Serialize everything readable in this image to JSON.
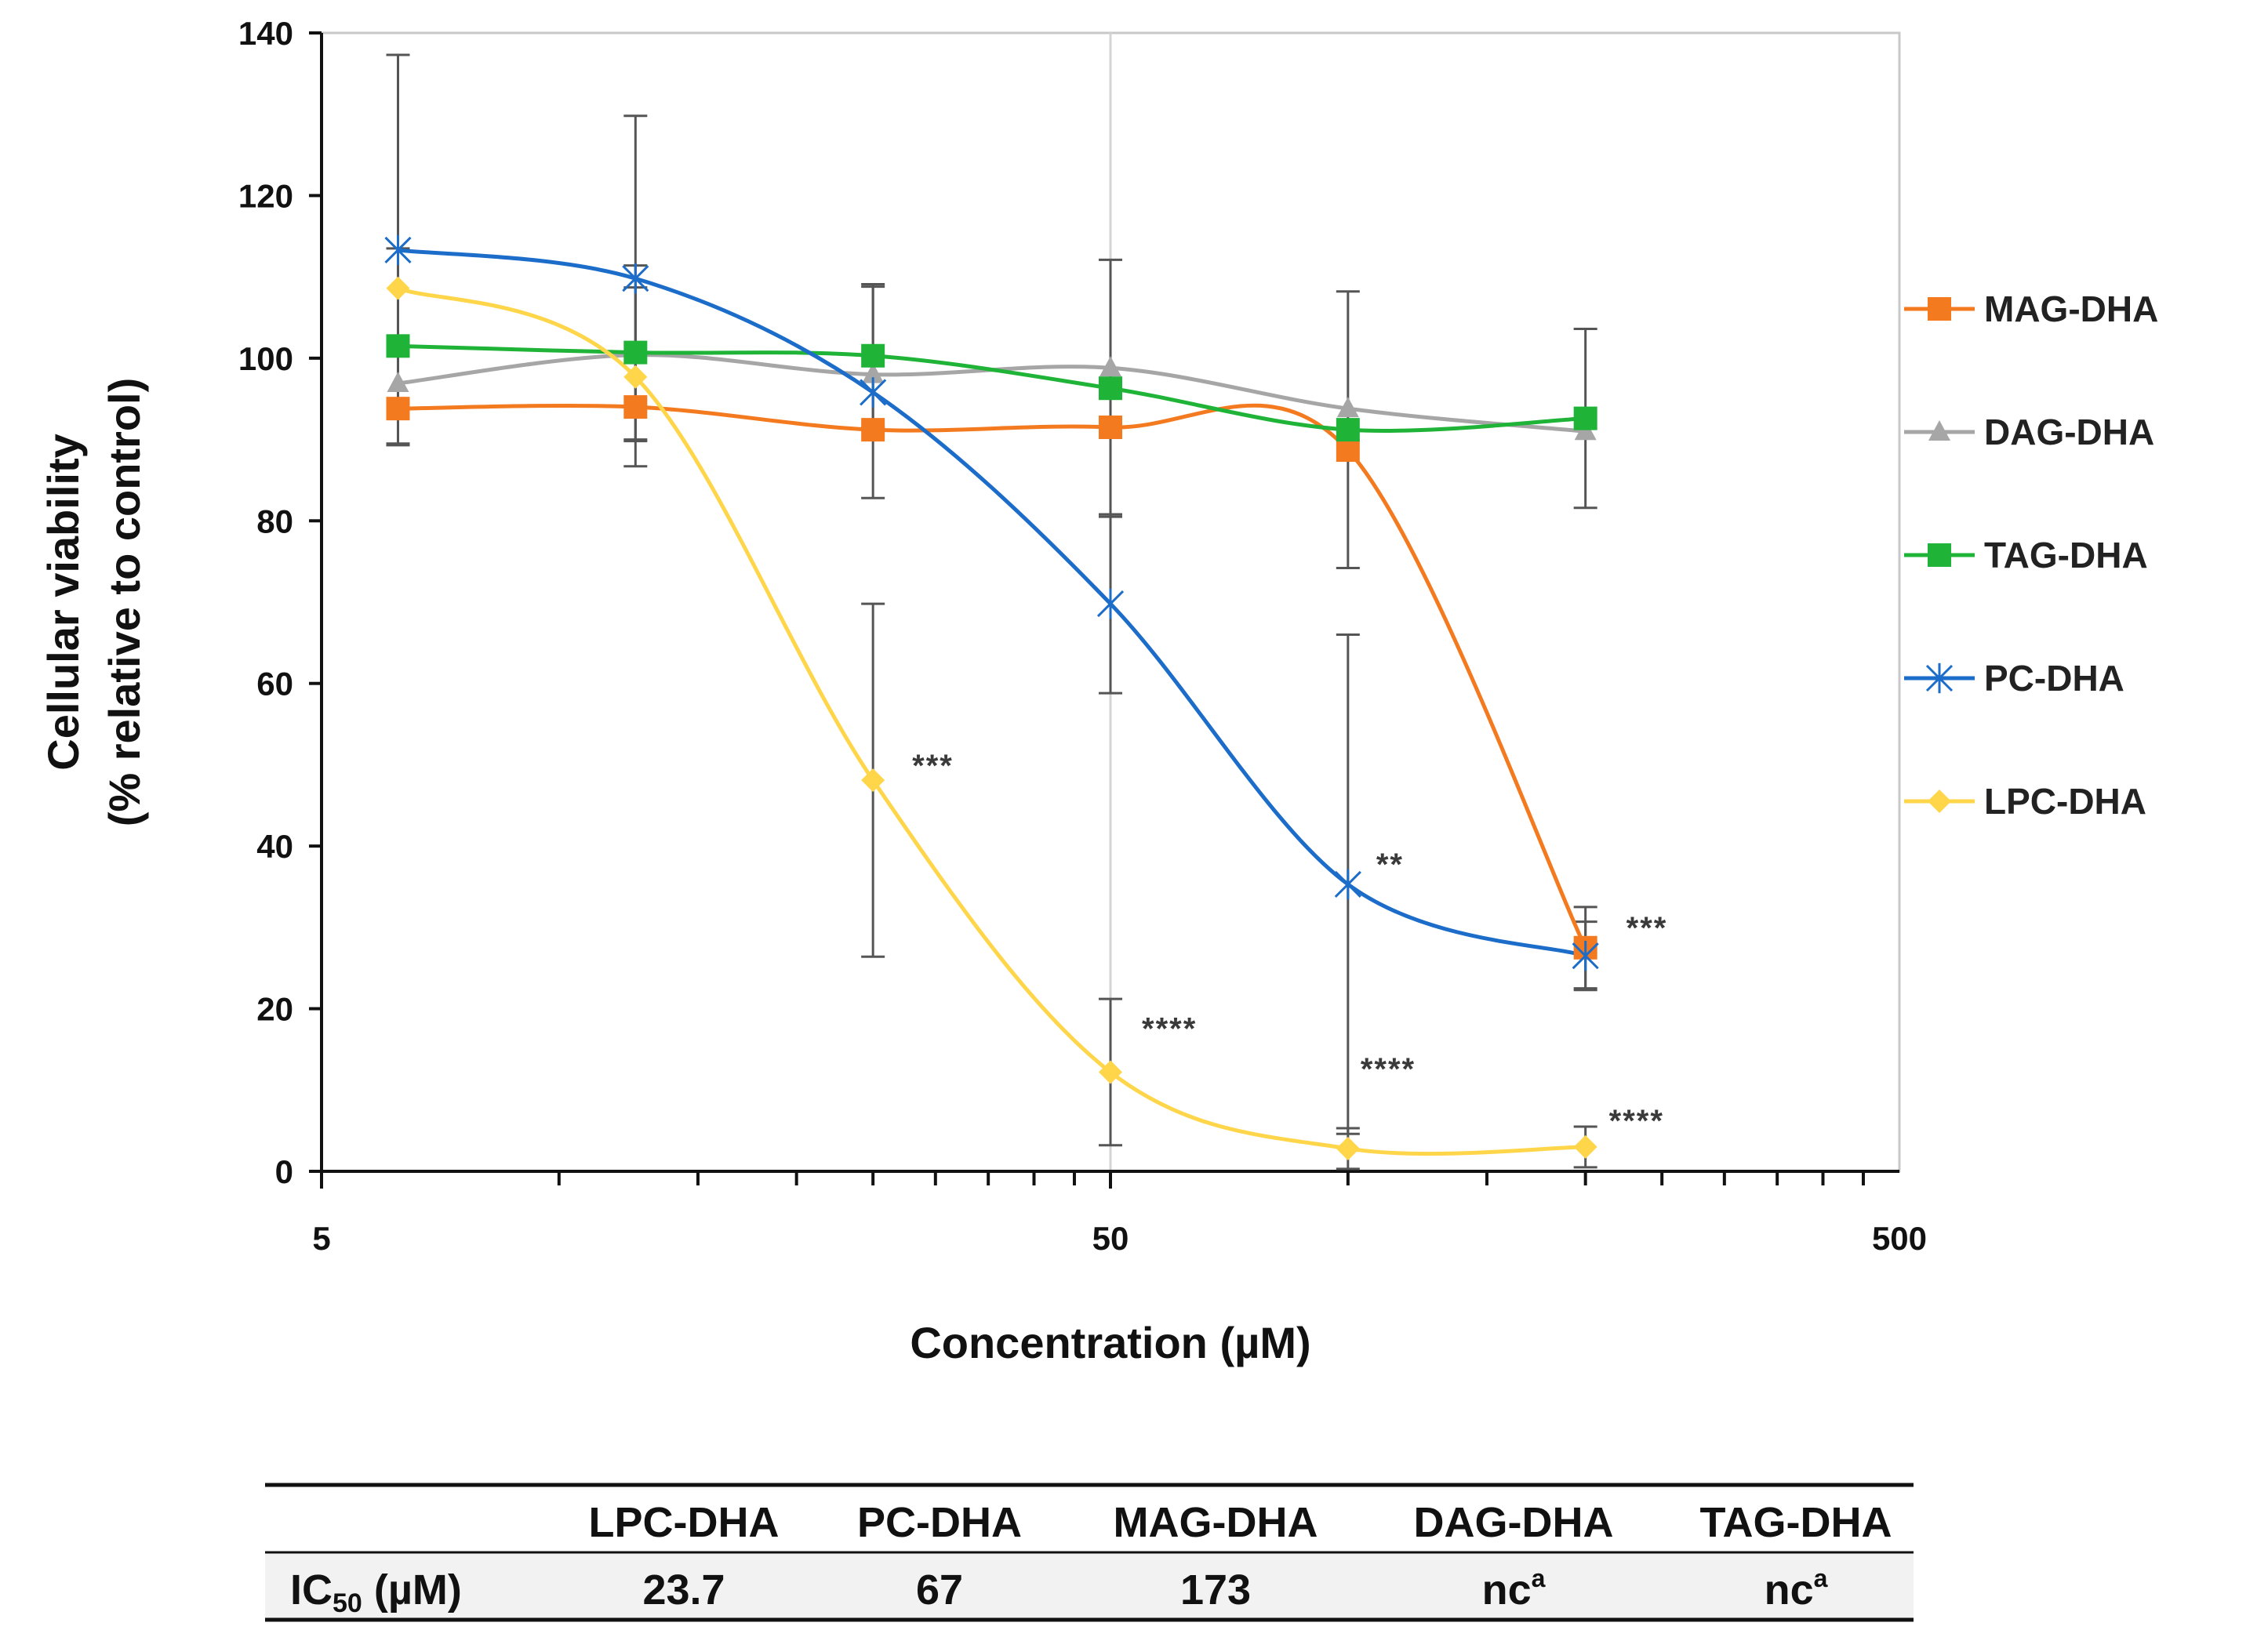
{
  "chart_data": {
    "type": "line",
    "xlabel": "Concentration (µM)",
    "ylabel_line1": "Cellular viability",
    "ylabel_line2": "(% relative to control)",
    "x_scale": "log",
    "xlim": [
      5,
      500
    ],
    "ylim": [
      0,
      140
    ],
    "x_tick_labels": [
      "5",
      "50",
      "500"
    ],
    "x_tick_values": [
      5,
      50,
      500
    ],
    "y_ticks": [
      0,
      20,
      40,
      60,
      80,
      100,
      120,
      140
    ],
    "x": [
      6.25,
      12.5,
      25,
      50,
      100,
      200
    ],
    "series": [
      {
        "name": "MAG-DHA",
        "color": "#f47a20",
        "marker": "square",
        "values": [
          93.8,
          94.0,
          91.2,
          91.5,
          88.7,
          27.5
        ],
        "errors": [
          null,
          null,
          null,
          null,
          null,
          5.0
        ]
      },
      {
        "name": "DAG-DHA",
        "color": "#a6a6a6",
        "marker": "triangle",
        "values": [
          96.9,
          100.4,
          98.0,
          98.8,
          93.8,
          91.0
        ],
        "errors": [
          null,
          null,
          null,
          null,
          null,
          null
        ]
      },
      {
        "name": "TAG-DHA",
        "color": "#1fb437",
        "marker": "square",
        "values": [
          101.5,
          100.7,
          100.3,
          96.3,
          91.2,
          92.6
        ],
        "errors": [
          12.0,
          10.7,
          8.8,
          15.8,
          17.0,
          11.0
        ]
      },
      {
        "name": "PC-DHA",
        "color": "#1c6cc9",
        "marker": "star",
        "values": [
          113.3,
          109.8,
          95.8,
          69.8,
          35.3,
          26.5
        ],
        "errors": [
          24.0,
          20.0,
          13.0,
          11.0,
          30.7,
          4.2
        ]
      },
      {
        "name": "LPC-DHA",
        "color": "#ffd54a",
        "marker": "diamond",
        "values": [
          108.6,
          97.7,
          48.1,
          12.2,
          2.8,
          3.0
        ],
        "errors": [
          null,
          11.0,
          21.7,
          9.0,
          2.5,
          2.5
        ]
      }
    ],
    "annotations": [
      {
        "text": "***",
        "x": 25,
        "y": 48.1
      },
      {
        "text": "****",
        "x": 50,
        "y": 12.2
      },
      {
        "text": "**",
        "x": 100,
        "y": 35.3
      },
      {
        "text": "****",
        "x": 100,
        "y": 2.8
      },
      {
        "text": "***",
        "x": 200,
        "y": 27.5
      },
      {
        "text": "****",
        "x": 200,
        "y": 3.0
      }
    ],
    "legend_position": "right"
  },
  "ic50_table": {
    "columns": [
      "LPC-DHA",
      "PC-DHA",
      "MAG-DHA",
      "DAG-DHA",
      "TAG-DHA"
    ],
    "row_label_main": "IC",
    "row_label_sub": "50",
    "row_label_rest": " (µM)",
    "values": [
      {
        "main": "23.7",
        "sup": ""
      },
      {
        "main": "67",
        "sup": ""
      },
      {
        "main": "173",
        "sup": ""
      },
      {
        "main": "nc",
        "sup": "a"
      },
      {
        "main": "nc",
        "sup": "a"
      }
    ]
  }
}
